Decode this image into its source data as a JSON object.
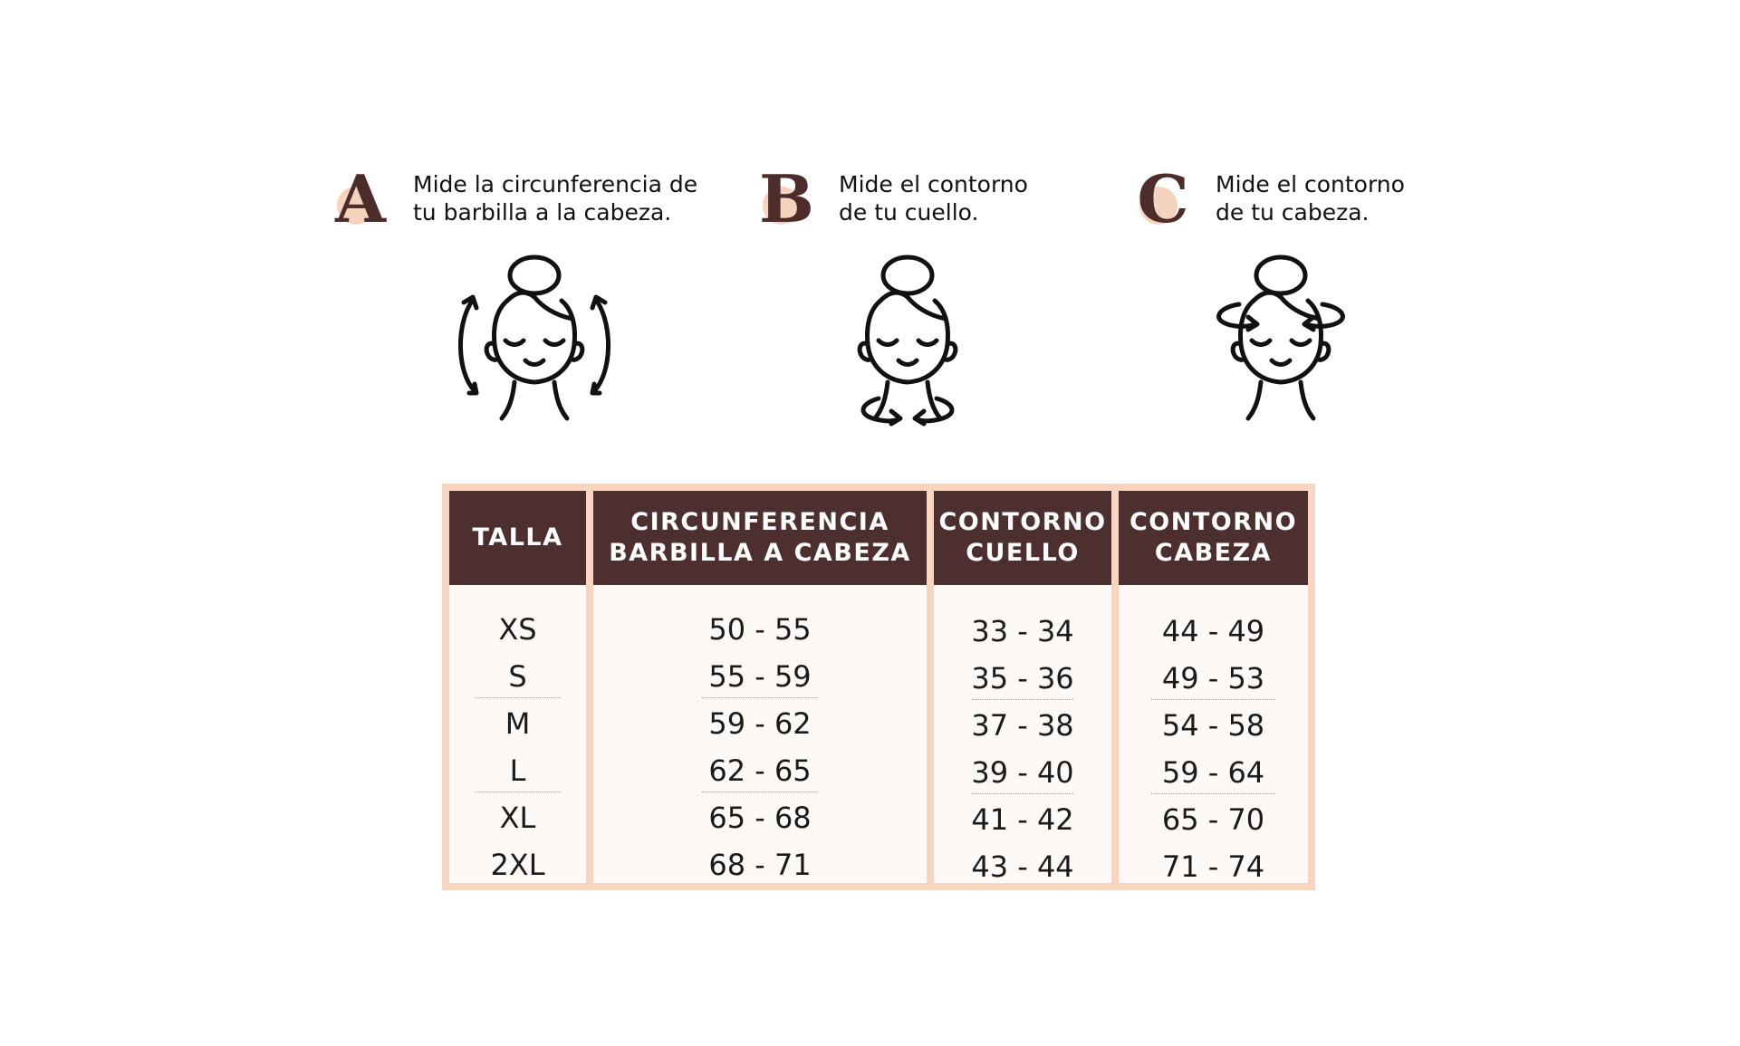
{
  "steps": [
    {
      "letter": "A",
      "line1": "Mide la circunferencia de",
      "line2": "tu barbilla a la cabeza.",
      "icon": "head-chin-measure-icon"
    },
    {
      "letter": "B",
      "line1": "Mide el contorno",
      "line2": "de tu cuello.",
      "icon": "neck-measure-icon"
    },
    {
      "letter": "C",
      "line1": "Mide el contorno",
      "line2": "de tu cabeza.",
      "icon": "head-circumference-icon"
    }
  ],
  "table": {
    "headers": [
      "TALLA",
      "CIRCUNFERENCIA\nBARBILLA A CABEZA",
      "CONTORNO\nCUELLO",
      "CONTORNO\nCABEZA"
    ],
    "rows": [
      [
        "XS",
        "50 - 55",
        "33 - 34",
        "44 - 49"
      ],
      [
        "S",
        "55 - 59",
        "35 - 36",
        "49 - 53"
      ],
      [
        "M",
        "59 - 62",
        "37 - 38",
        "54 - 58"
      ],
      [
        "L",
        "62 - 65",
        "39 - 40",
        "59 - 64"
      ],
      [
        "XL",
        "65 - 68",
        "41 - 42",
        "65 - 70"
      ],
      [
        "2XL",
        "68 - 71",
        "43 - 44",
        "71 - 74"
      ]
    ]
  },
  "colors": {
    "header_bg": "#4e2f30",
    "frame": "#f8d5c1",
    "accent_dot": "#f6d3bd",
    "letter": "#4d2c2c"
  }
}
